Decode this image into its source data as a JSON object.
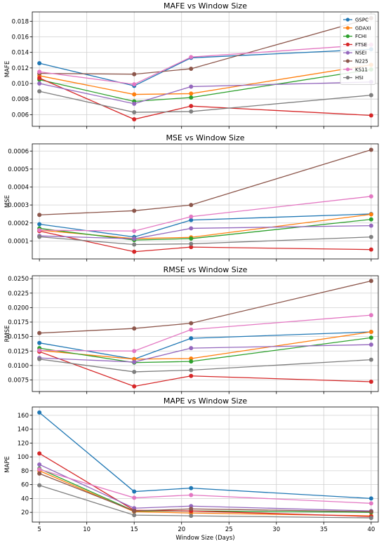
{
  "chart_data": [
    {
      "type": "line",
      "title": "MAFE vs Window Size",
      "xlabel": "",
      "ylabel": "MAFE",
      "xlim": [
        4.25,
        40.75
      ],
      "ylim": [
        0.0045,
        0.0192
      ],
      "xticks": [
        5,
        10,
        15,
        20,
        25,
        30,
        35,
        40
      ],
      "xtick_labels": [
        "",
        "",
        "",
        "",
        "",
        "",
        "",
        ""
      ],
      "yticks": [
        0.006,
        0.008,
        0.01,
        0.012,
        0.014,
        0.016,
        0.018
      ],
      "ytick_labels": [
        "0.006",
        "0.008",
        "0.010",
        "0.012",
        "0.014",
        "0.016",
        "0.018"
      ],
      "x": [
        5,
        15,
        21,
        40
      ],
      "grid": true,
      "legend": "top-right",
      "series": [
        {
          "name": "GSPC",
          "color": "#1f77b4",
          "values": [
            0.0126,
            0.0097,
            0.0133,
            0.0144
          ]
        },
        {
          "name": "GDAXI",
          "color": "#ff7f0e",
          "values": [
            0.011,
            0.0086,
            0.0087,
            0.0124
          ]
        },
        {
          "name": "FCHI",
          "color": "#2ca02c",
          "values": [
            0.0105,
            0.0077,
            0.0082,
            0.0118
          ]
        },
        {
          "name": "FTSE",
          "color": "#d62728",
          "values": [
            0.0107,
            0.0054,
            0.0071,
            0.0059
          ]
        },
        {
          "name": "NSEI",
          "color": "#9467bd",
          "values": [
            0.01,
            0.0074,
            0.0096,
            0.0102
          ]
        },
        {
          "name": "N225",
          "color": "#8c564b",
          "values": [
            0.0113,
            0.0112,
            0.0119,
            0.0184
          ]
        },
        {
          "name": "KS11",
          "color": "#e377c2",
          "values": [
            0.0115,
            0.0099,
            0.0134,
            0.015
          ]
        },
        {
          "name": "HSI",
          "color": "#7f7f7f",
          "values": [
            0.009,
            0.0063,
            0.0064,
            0.0085
          ]
        }
      ]
    },
    {
      "type": "line",
      "title": "MSE vs Window Size",
      "xlabel": "",
      "ylabel": "MSE",
      "xlim": [
        4.25,
        40.75
      ],
      "ylim": [
        0.0,
        0.00064
      ],
      "xticks": [
        5,
        10,
        15,
        20,
        25,
        30,
        35,
        40
      ],
      "xtick_labels": [
        "",
        "",
        "",
        "",
        "",
        "",
        "",
        ""
      ],
      "yticks": [
        0.0001,
        0.0002,
        0.0003,
        0.0004,
        0.0005,
        0.0006
      ],
      "ytick_labels": [
        "0.0001",
        "0.0002",
        "0.0003",
        "0.0004",
        "0.0005",
        "0.0006"
      ],
      "x": [
        5,
        15,
        21,
        40
      ],
      "grid": true,
      "series": [
        {
          "name": "GSPC",
          "color": "#1f77b4",
          "values": [
            0.000193,
            0.000122,
            0.000216,
            0.00025
          ]
        },
        {
          "name": "GDAXI",
          "color": "#ff7f0e",
          "values": [
            0.00016,
            0.000113,
            0.00012,
            0.000248
          ]
        },
        {
          "name": "FCHI",
          "color": "#2ca02c",
          "values": [
            0.00017,
            0.000105,
            0.000113,
            0.00022
          ]
        },
        {
          "name": "FTSE",
          "color": "#d62728",
          "values": [
            0.000155,
            4e-05,
            6.6e-05,
            5.2e-05
          ]
        },
        {
          "name": "NSEI",
          "color": "#9467bd",
          "values": [
            0.000128,
            0.000112,
            0.00017,
            0.000185
          ]
        },
        {
          "name": "N225",
          "color": "#8c564b",
          "values": [
            0.000245,
            0.000268,
            0.0003,
            0.000607
          ]
        },
        {
          "name": "KS11",
          "color": "#e377c2",
          "values": [
            0.00016,
            0.000155,
            0.000235,
            0.000348
          ]
        },
        {
          "name": "HSI",
          "color": "#7f7f7f",
          "values": [
            0.000123,
            8e-05,
            8.4e-05,
            0.000122
          ]
        }
      ]
    },
    {
      "type": "line",
      "title": "RMSE vs Window Size",
      "xlabel": "",
      "ylabel": "RMSE",
      "xlim": [
        4.25,
        40.75
      ],
      "ylim": [
        0.0055,
        0.0255
      ],
      "xticks": [
        5,
        10,
        15,
        20,
        25,
        30,
        35,
        40
      ],
      "xtick_labels": [
        "",
        "",
        "",
        "",
        "",
        "",
        "",
        ""
      ],
      "yticks": [
        0.0075,
        0.01,
        0.0125,
        0.015,
        0.0175,
        0.02,
        0.0225,
        0.025
      ],
      "ytick_labels": [
        "0.0075",
        "0.0100",
        "0.0125",
        "0.0150",
        "0.0175",
        "0.0200",
        "0.0225",
        "0.0250"
      ],
      "x": [
        5,
        15,
        21,
        40
      ],
      "grid": true,
      "series": [
        {
          "name": "GSPC",
          "color": "#1f77b4",
          "values": [
            0.0139,
            0.0111,
            0.0147,
            0.0158
          ]
        },
        {
          "name": "GDAXI",
          "color": "#ff7f0e",
          "values": [
            0.0126,
            0.0111,
            0.0112,
            0.0158
          ]
        },
        {
          "name": "FCHI",
          "color": "#2ca02c",
          "values": [
            0.013,
            0.0105,
            0.0107,
            0.0148
          ]
        },
        {
          "name": "FTSE",
          "color": "#d62728",
          "values": [
            0.0124,
            0.0064,
            0.0082,
            0.0072
          ]
        },
        {
          "name": "NSEI",
          "color": "#9467bd",
          "values": [
            0.0113,
            0.0106,
            0.013,
            0.0136
          ]
        },
        {
          "name": "N225",
          "color": "#8c564b",
          "values": [
            0.0156,
            0.0164,
            0.0173,
            0.0246
          ]
        },
        {
          "name": "KS11",
          "color": "#e377c2",
          "values": [
            0.0126,
            0.0125,
            0.0162,
            0.0187
          ]
        },
        {
          "name": "HSI",
          "color": "#7f7f7f",
          "values": [
            0.0111,
            0.0089,
            0.0092,
            0.011
          ]
        }
      ]
    },
    {
      "type": "line",
      "title": "MAPE vs Window Size",
      "xlabel": "Window Size (Days)",
      "ylabel": "MAPE",
      "xlim": [
        4.25,
        40.75
      ],
      "ylim": [
        6,
        172
      ],
      "xticks": [
        5,
        10,
        15,
        20,
        25,
        30,
        35,
        40
      ],
      "xtick_labels": [
        "5",
        "10",
        "15",
        "20",
        "25",
        "30",
        "35",
        "40"
      ],
      "yticks": [
        20,
        40,
        60,
        80,
        100,
        120,
        140,
        160
      ],
      "ytick_labels": [
        "20",
        "40",
        "60",
        "80",
        "100",
        "120",
        "140",
        "160"
      ],
      "x": [
        5,
        15,
        21,
        40
      ],
      "grid": true,
      "series": [
        {
          "name": "GSPC",
          "color": "#1f77b4",
          "values": [
            164,
            50,
            55,
            40
          ]
        },
        {
          "name": "GDAXI",
          "color": "#ff7f0e",
          "values": [
            80,
            21,
            19,
            15
          ]
        },
        {
          "name": "FCHI",
          "color": "#2ca02c",
          "values": [
            83,
            22,
            22,
            20
          ]
        },
        {
          "name": "FTSE",
          "color": "#d62728",
          "values": [
            105,
            23,
            22,
            14
          ]
        },
        {
          "name": "NSEI",
          "color": "#9467bd",
          "values": [
            89,
            26,
            29,
            22
          ]
        },
        {
          "name": "N225",
          "color": "#8c564b",
          "values": [
            76,
            22,
            25,
            21
          ]
        },
        {
          "name": "KS11",
          "color": "#e377c2",
          "values": [
            82,
            41,
            45,
            33
          ]
        },
        {
          "name": "HSI",
          "color": "#7f7f7f",
          "values": [
            59,
            16,
            15,
            12
          ]
        }
      ]
    }
  ]
}
